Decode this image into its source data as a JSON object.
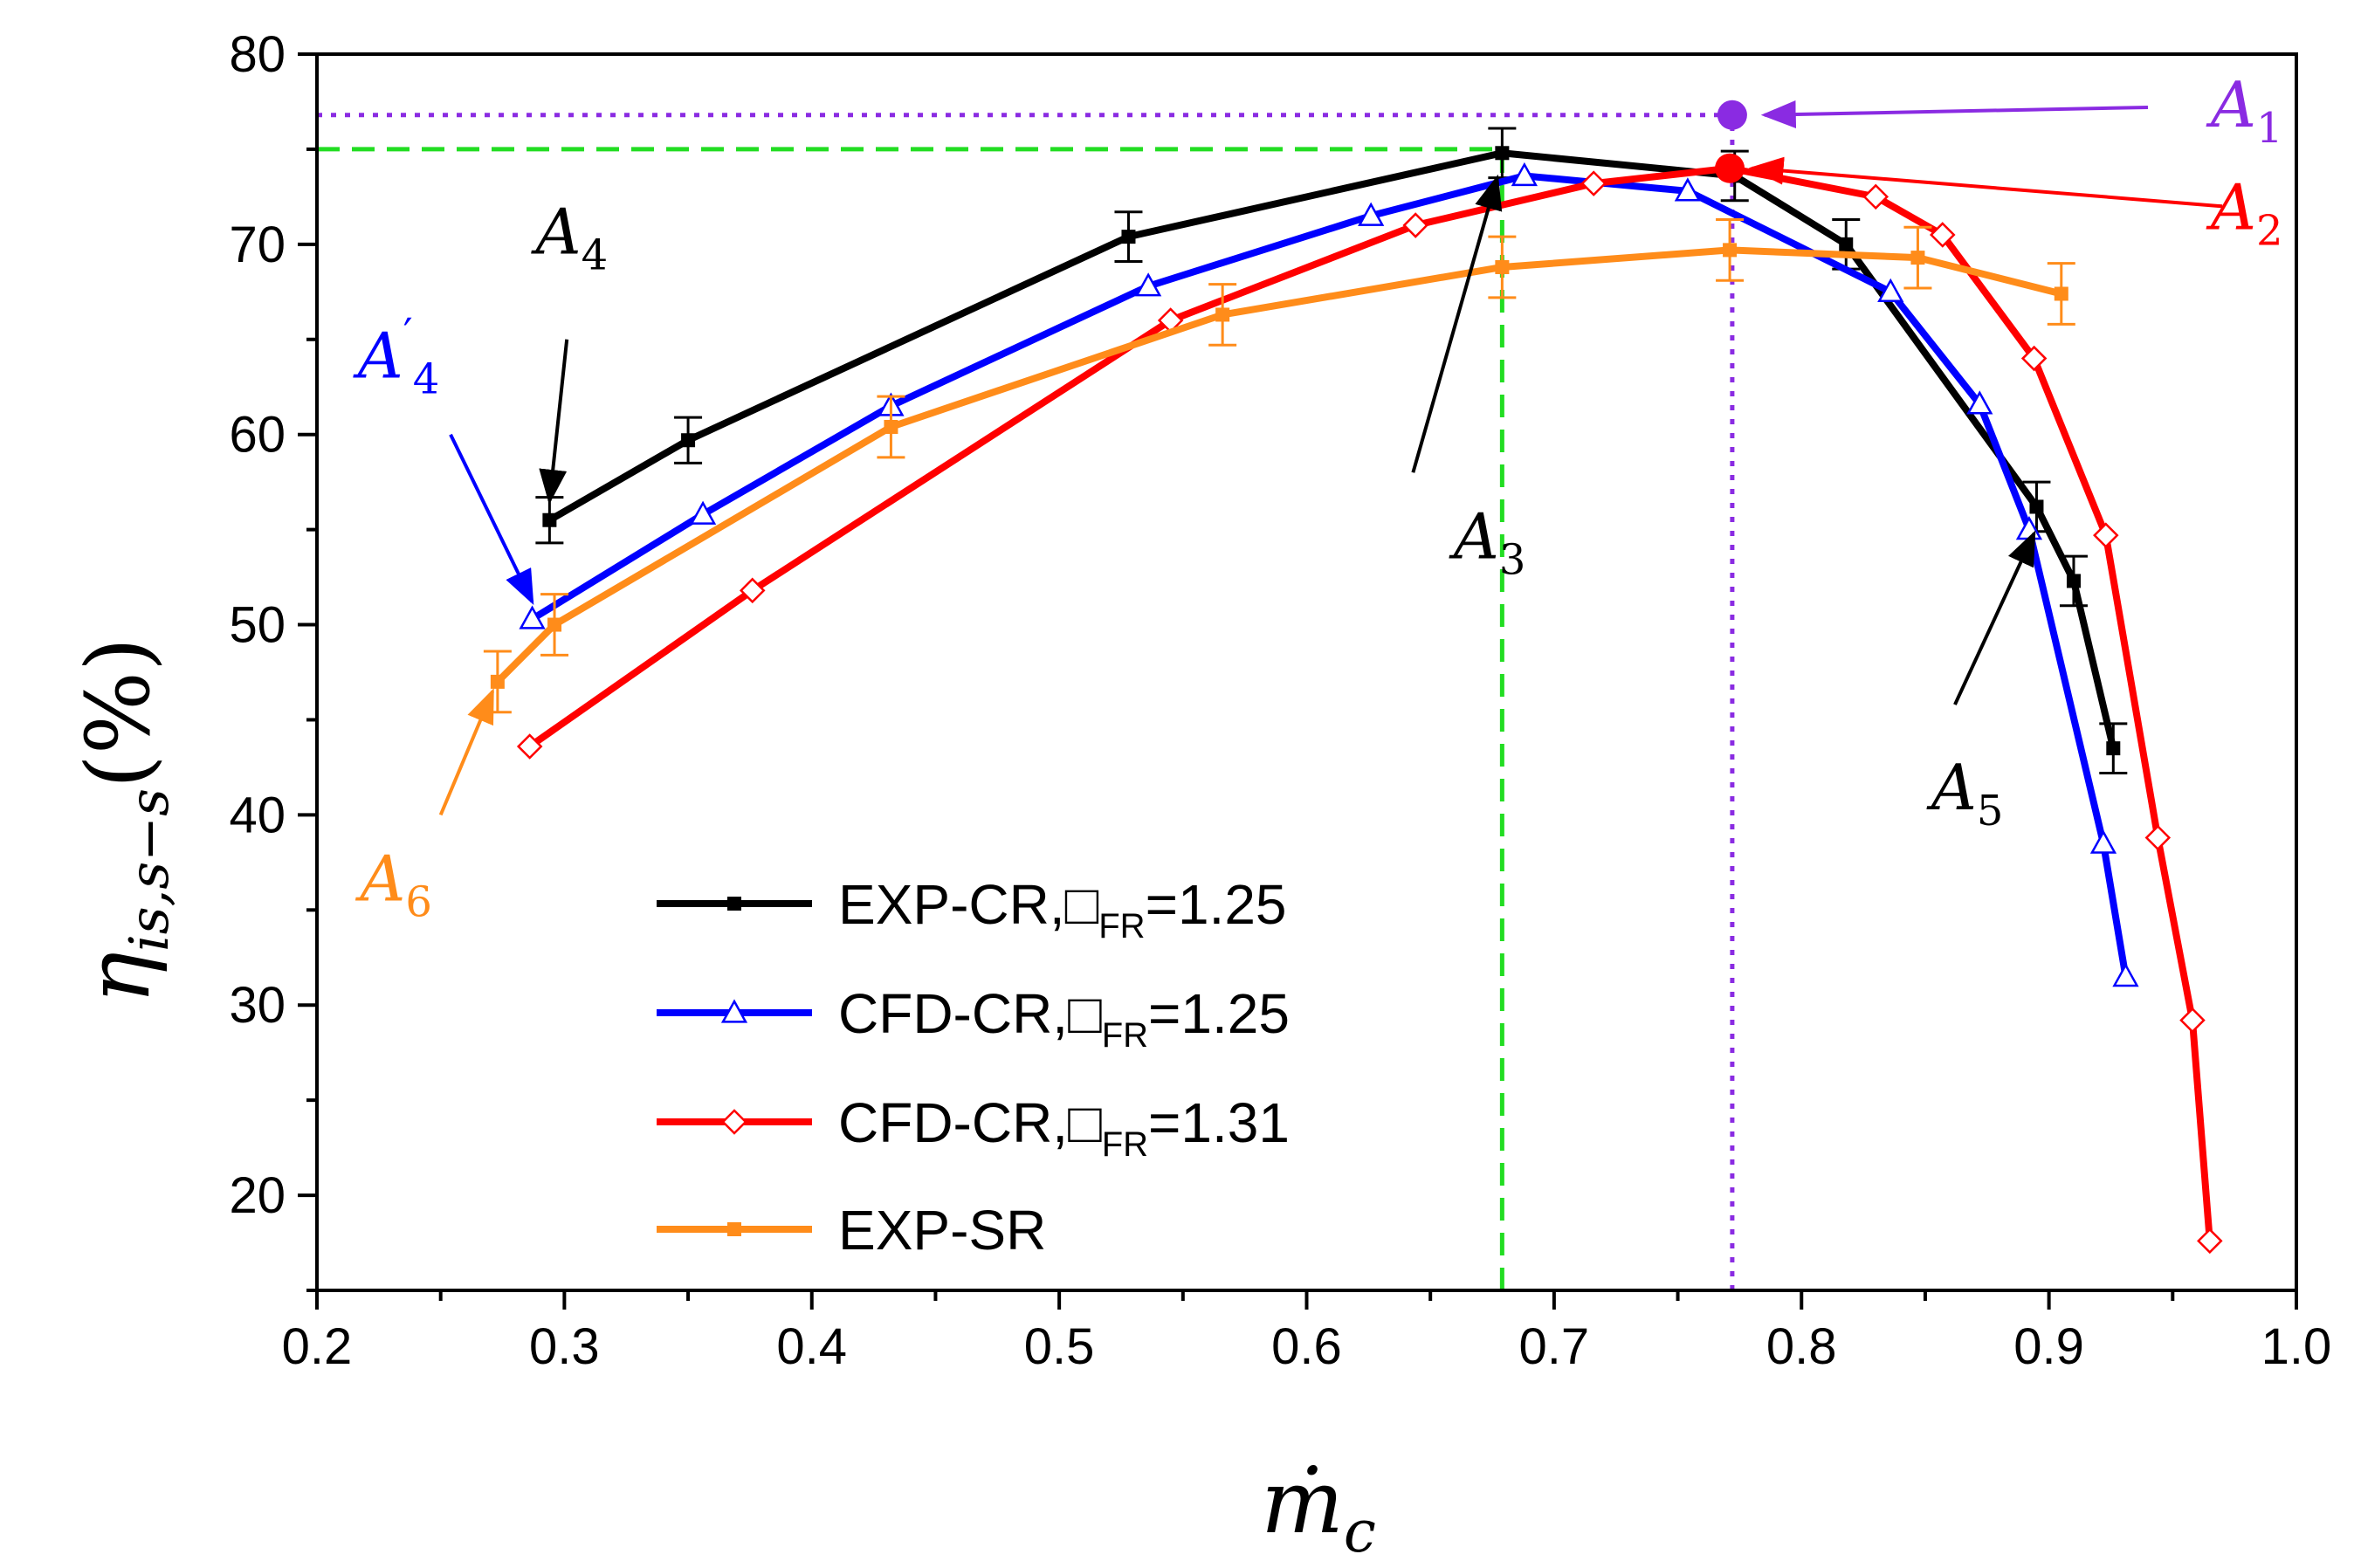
{
  "chart_data": {
    "type": "line",
    "xlabel": "ṁ",
    "xlabel_sub": "c",
    "ylabel": "η",
    "ylabel_sub": "is,s−s",
    "ylabel_unit": "(%)",
    "xlim": [
      0.2,
      1.0
    ],
    "ylim": [
      15,
      80
    ],
    "x_ticks": [
      0.2,
      0.3,
      0.4,
      0.5,
      0.6,
      0.7,
      0.8,
      0.9,
      1.0
    ],
    "x_tick_labels": [
      "0.2",
      "0.3",
      "0.4",
      "0.5",
      "0.6",
      "0.7",
      "0.8",
      "0.9",
      "1.0"
    ],
    "y_ticks": [
      20,
      30,
      40,
      50,
      60,
      70,
      80
    ],
    "y_tick_labels": [
      "20",
      "30",
      "40",
      "50",
      "60",
      "70",
      "80"
    ],
    "grid": false,
    "legend_position": "bottom-left",
    "series": [
      {
        "name": "EXP-CR,□FR=1.25",
        "legend_main": "EXP-CR,□",
        "legend_sub": "FR",
        "legend_tail": "=1.25",
        "color": "#000000",
        "marker": "square-filled",
        "x": [
          0.294,
          0.35,
          0.528,
          0.679,
          0.773,
          0.818,
          0.895,
          0.91,
          0.926
        ],
        "y": [
          55.5,
          59.7,
          70.4,
          74.8,
          73.6,
          70.0,
          56.2,
          52.3,
          43.5
        ],
        "err": [
          1.2,
          1.2,
          1.3,
          1.3,
          1.3,
          1.3,
          1.3,
          1.3,
          1.3
        ]
      },
      {
        "name": "CFD-CR,□FR=1.25",
        "legend_main": "CFD-CR,□",
        "legend_sub": "FR",
        "legend_tail": "=1.25",
        "color": "#0000ff",
        "marker": "triangle-open",
        "x": [
          0.287,
          0.356,
          0.432,
          0.536,
          0.626,
          0.688,
          0.754,
          0.836,
          0.872,
          0.892,
          0.922,
          0.931
        ],
        "y": [
          50.3,
          55.8,
          61.5,
          67.8,
          71.5,
          73.6,
          72.8,
          67.5,
          61.6,
          55.0,
          38.5,
          31.5
        ]
      },
      {
        "name": "CFD-CR,□FR=1.31",
        "legend_main": "CFD-CR,□",
        "legend_sub": "FR",
        "legend_tail": "=1.31",
        "color": "#ff0000",
        "marker": "diamond-open",
        "x": [
          0.286,
          0.376,
          0.545,
          0.644,
          0.716,
          0.771,
          0.83,
          0.857,
          0.894,
          0.923,
          0.944,
          0.958,
          0.965
        ],
        "y": [
          43.6,
          51.8,
          66.0,
          71.0,
          73.2,
          74.0,
          72.5,
          70.5,
          64.0,
          54.7,
          38.8,
          29.2,
          17.6
        ]
      },
      {
        "name": "EXP-SR",
        "legend_main": "EXP-SR",
        "legend_sub": "",
        "legend_tail": "",
        "color": "#ff8c1a",
        "marker": "square-filled",
        "x": [
          0.273,
          0.296,
          0.432,
          0.566,
          0.679,
          0.771,
          0.847,
          0.905
        ],
        "y": [
          47.0,
          50.0,
          60.4,
          66.3,
          68.8,
          69.7,
          69.3,
          67.4
        ],
        "err": [
          1.6,
          1.6,
          1.6,
          1.6,
          1.6,
          1.6,
          1.6,
          1.6
        ]
      }
    ],
    "reference_lines": [
      {
        "color": "#22dd22",
        "style": "dashed",
        "x": 0.679,
        "y": 75.0
      },
      {
        "color": "#8a2be2",
        "style": "dotted",
        "x": 0.772,
        "y": 76.8
      }
    ],
    "annotations": [
      {
        "label": "A",
        "sub": "1",
        "prime": "",
        "color": "#8a2be2",
        "point": [
          0.772,
          76.8
        ],
        "text_at": [
          0.98,
          76.2
        ],
        "tail": [
          0.94,
          77.2
        ],
        "head": [
          0.785,
          76.8
        ]
      },
      {
        "label": "A",
        "sub": "2",
        "prime": "",
        "color": "#ff0000",
        "point": [
          0.771,
          74.0
        ],
        "text_at": [
          0.98,
          70.8
        ],
        "tail": [
          0.97,
          72.0
        ],
        "head": [
          0.78,
          74.0
        ]
      },
      {
        "label": "A",
        "sub": "3",
        "prime": "",
        "color": "#000000",
        "point": null,
        "text_at": [
          0.674,
          53.5
        ],
        "tail": [
          0.643,
          58.0
        ],
        "head": [
          0.677,
          73.5
        ]
      },
      {
        "label": "A",
        "sub": "4",
        "prime": "",
        "color": "#000000",
        "point": null,
        "text_at": [
          0.303,
          69.5
        ],
        "tail": [
          0.301,
          65.0
        ],
        "head": [
          0.294,
          56.5
        ]
      },
      {
        "label": "A",
        "sub": "4",
        "prime": "′",
        "color": "#0000ff",
        "point": null,
        "text_at": [
          0.233,
          63.0
        ],
        "tail": [
          0.254,
          60.0
        ],
        "head": [
          0.287,
          51.2
        ]
      },
      {
        "label": "A",
        "sub": "5",
        "prime": "",
        "color": "#000000",
        "point": null,
        "text_at": [
          0.867,
          40.3
        ],
        "tail": [
          0.862,
          45.8
        ],
        "head": [
          0.894,
          54.8
        ]
      },
      {
        "label": "A",
        "sub": "6",
        "prime": "",
        "color": "#ff8c1a",
        "point": null,
        "text_at": [
          0.232,
          35.5
        ],
        "tail": [
          0.25,
          40.0
        ],
        "head": [
          0.271,
          46.5
        ]
      }
    ]
  }
}
